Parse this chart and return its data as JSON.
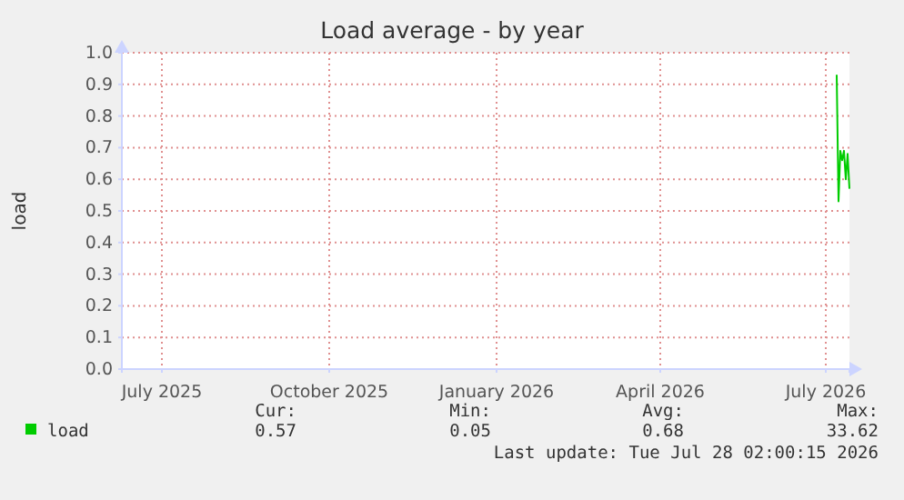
{
  "chart_data": {
    "type": "line",
    "title": "Load average - by year",
    "ylabel": "load",
    "xlim": [
      "2025-06-23",
      "2026-07-28"
    ],
    "xticks": [
      {
        "value": "2025-07-15",
        "label": "July 2025"
      },
      {
        "value": "2025-10-15",
        "label": "October 2025"
      },
      {
        "value": "2026-01-15",
        "label": "January 2026"
      },
      {
        "value": "2026-04-15",
        "label": "April 2026"
      },
      {
        "value": "2026-07-15",
        "label": "July 2026"
      }
    ],
    "ylim": [
      0,
      1
    ],
    "yticks": [
      {
        "value": 0,
        "label": "0.0"
      },
      0.1,
      0.2,
      0.3,
      0.4,
      0.5,
      0.6,
      0.7,
      0.8,
      0.9,
      {
        "value": 1,
        "label": "1.0"
      }
    ],
    "grid": true,
    "legend": "bottom left",
    "marker": "none",
    "line_style": "solid",
    "series": [
      {
        "name": "load",
        "color": "#00cc00",
        "x": [
          "2026-07-21",
          "2026-07-22",
          "2026-07-23",
          "2026-07-24",
          "2026-07-25",
          "2026-07-26",
          "2026-07-27",
          "2026-07-28"
        ],
        "values": [
          0.93,
          0.53,
          0.69,
          0.66,
          0.69,
          0.6,
          0.68,
          0.57
        ]
      }
    ],
    "annotations": [
      "Cur:",
      "Min:",
      "Avg:",
      "Max:",
      "0.57",
      "0.05",
      "0.68",
      "33.62",
      "Last update: Tue Jul 28 02:00:15 2026"
    ]
  }
}
